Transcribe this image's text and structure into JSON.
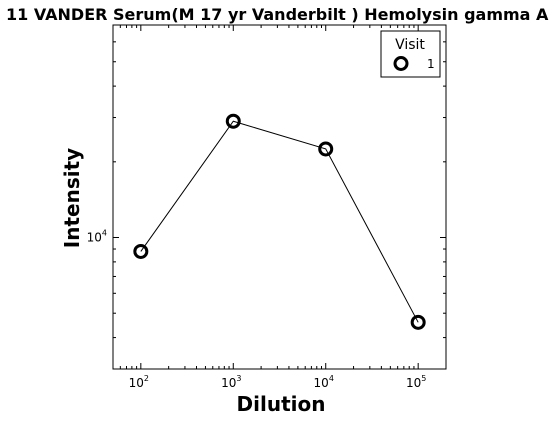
{
  "chart_data": {
    "type": "line",
    "title": "11 VANDER Serum(M 17 yr Vanderbilt ) Hemolysin gamma A",
    "xlabel": "Dilution",
    "ylabel": "Intensity",
    "x_scale": "log",
    "y_scale": "log",
    "xlim": [
      50,
      200000
    ],
    "ylim": [
      3000,
      70000
    ],
    "x_ticks": [
      {
        "base": "10",
        "exp": "2",
        "value": 100
      },
      {
        "base": "10",
        "exp": "3",
        "value": 1000
      },
      {
        "base": "10",
        "exp": "4",
        "value": 10000
      },
      {
        "base": "10",
        "exp": "5",
        "value": 100000
      }
    ],
    "y_major_ticks": [
      {
        "base": "10",
        "exp": "4",
        "value": 10000
      }
    ],
    "y_minor_ticks": [
      4000,
      5000,
      6000,
      7000,
      8000,
      9000,
      20000,
      30000,
      40000,
      50000,
      60000,
      70000
    ],
    "x_minor_decades": [
      10,
      100,
      1000,
      10000,
      100000
    ],
    "legend": {
      "title": "Visit",
      "position": "top-right"
    },
    "series": [
      {
        "name": "1",
        "x": [
          100,
          1000,
          10000,
          100000
        ],
        "y": [
          8800,
          29000,
          22500,
          4600
        ],
        "color": "#000000",
        "marker": "open-circle"
      }
    ],
    "grid": false
  }
}
